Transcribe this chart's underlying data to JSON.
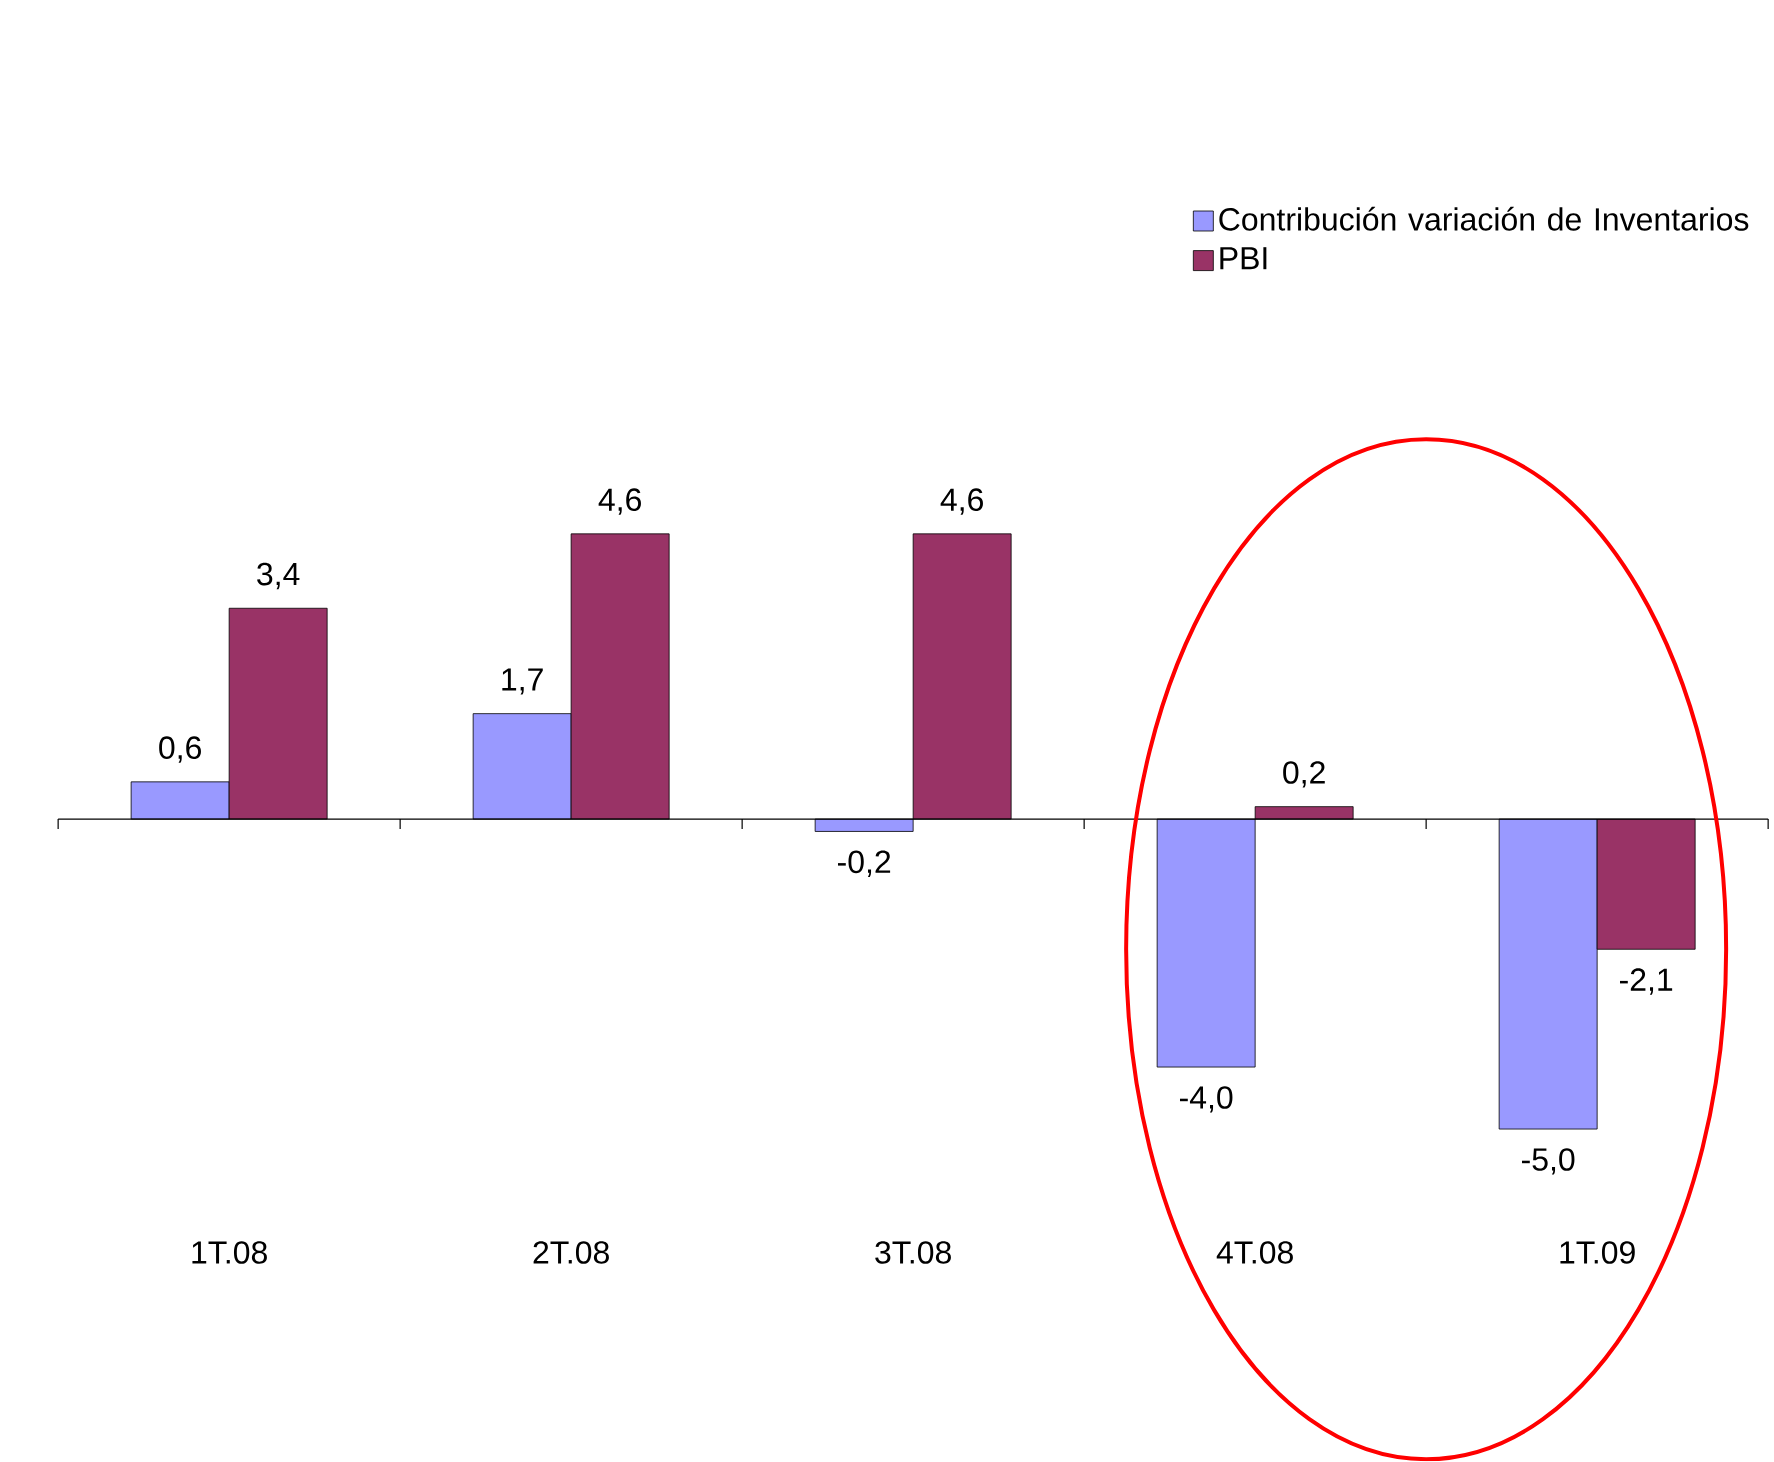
{
  "chart_data": {
    "type": "bar",
    "categories": [
      "1T.08",
      "2T.08",
      "3T.08",
      "4T.08",
      "1T.09"
    ],
    "series": [
      {
        "name": "Contribución variación de Inventarios",
        "color": "#9999ff",
        "values": [
          0.6,
          1.7,
          -0.2,
          -4.0,
          -5.0
        ],
        "value_labels": [
          "0,6",
          "1,7",
          "-0,2",
          "-4,0",
          "-5,0"
        ]
      },
      {
        "name": "PBI",
        "color": "#993366",
        "values": [
          3.4,
          4.6,
          4.6,
          0.2,
          -2.1
        ],
        "value_labels": [
          "3,4",
          "4,6",
          "4,6",
          "0,2",
          "-2,1"
        ]
      }
    ],
    "tick_labels": "x",
    "legend": "top right"
  }
}
